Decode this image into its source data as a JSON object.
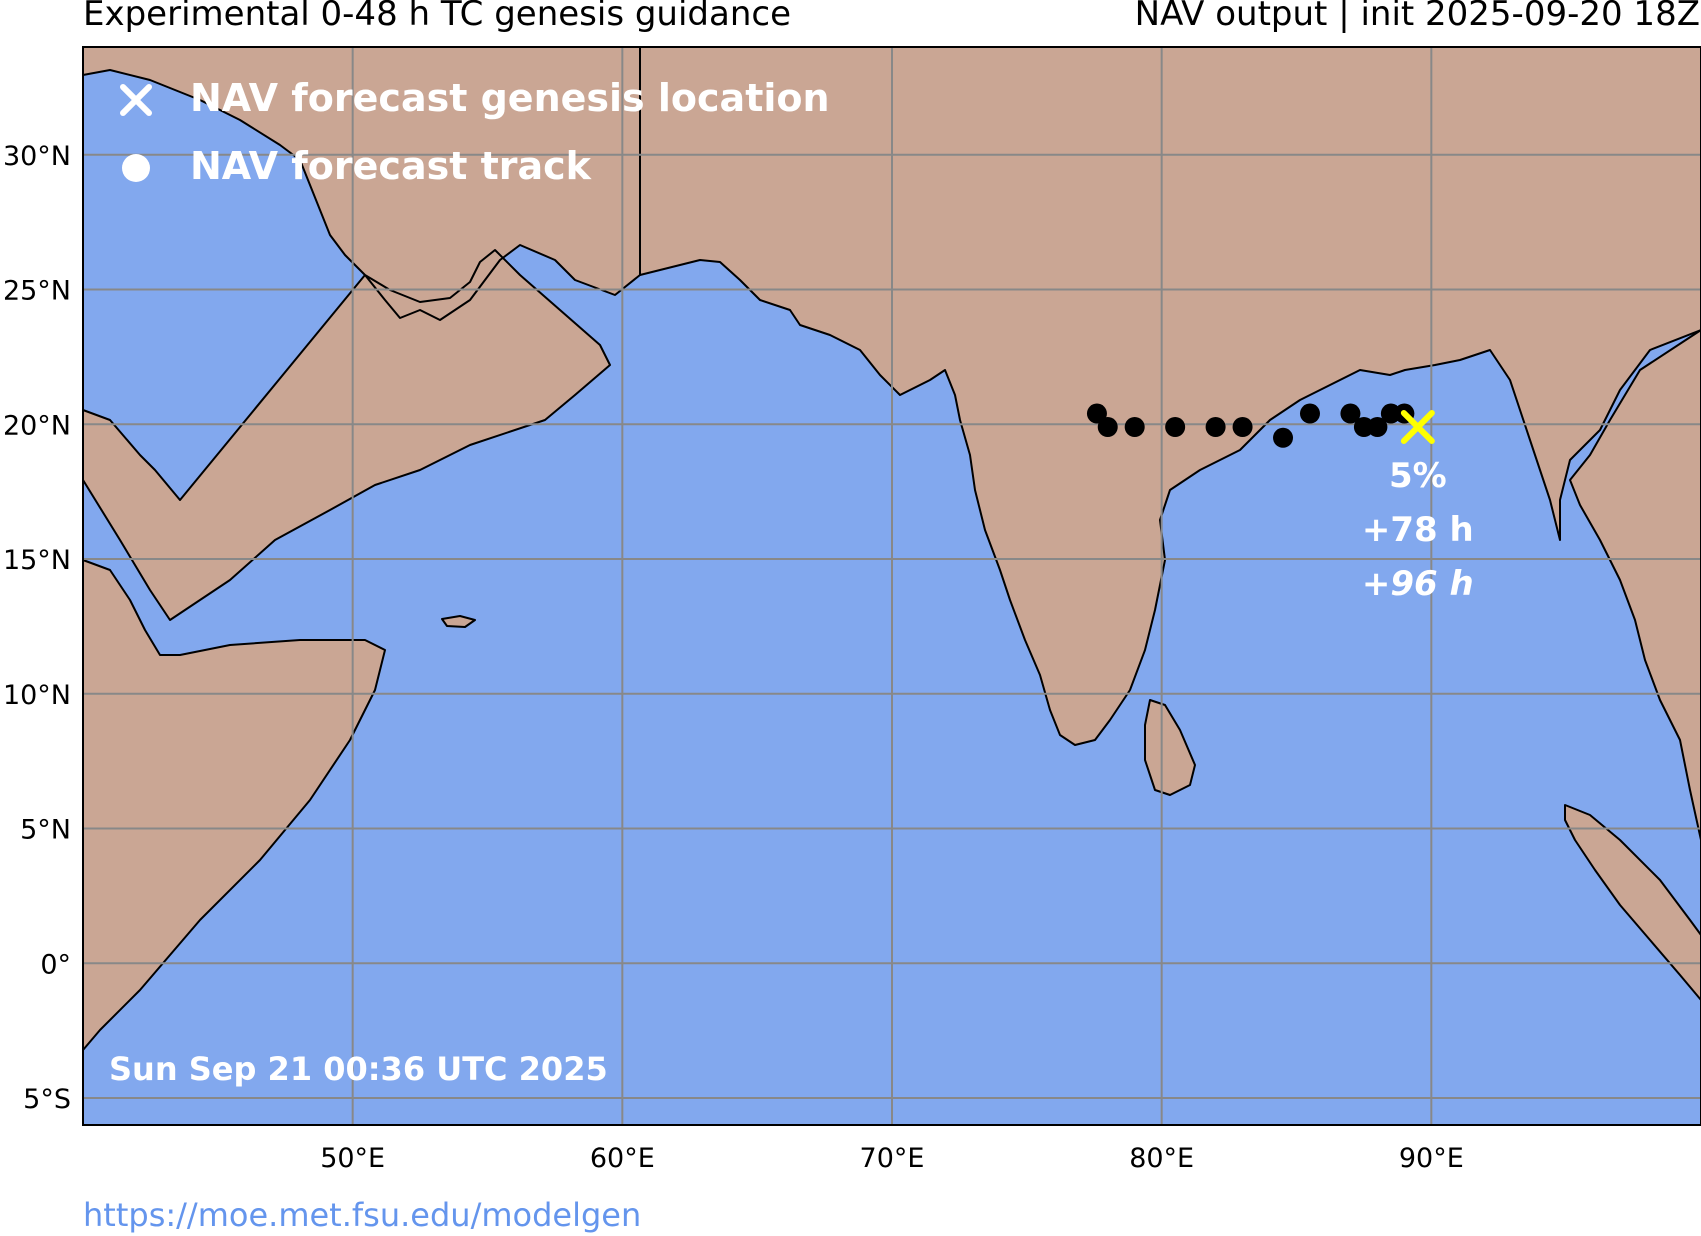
{
  "header": {
    "title_left": "Experimental 0-48 h TC genesis guidance",
    "title_right": "NAV output | init 2025-09-20 18Z"
  },
  "legend": {
    "genesis_label": "NAV forecast genesis location",
    "track_label": "NAV forecast track"
  },
  "map": {
    "extent": {
      "lon_min": 40,
      "lon_max": 100,
      "lat_min": -6,
      "lat_max": 34
    },
    "lat_ticks": [
      {
        "lat": 30,
        "label": "30°N"
      },
      {
        "lat": 25,
        "label": "25°N"
      },
      {
        "lat": 20,
        "label": "20°N"
      },
      {
        "lat": 15,
        "label": "15°N"
      },
      {
        "lat": 10,
        "label": "10°N"
      },
      {
        "lat": 5,
        "label": "5°N"
      },
      {
        "lat": 0,
        "label": "0°"
      },
      {
        "lat": -5,
        "label": "5°S"
      }
    ],
    "lon_ticks": [
      {
        "lon": 50,
        "label": "50°E"
      },
      {
        "lon": 60,
        "label": "60°E"
      },
      {
        "lon": 70,
        "label": "70°E"
      },
      {
        "lon": 80,
        "label": "80°E"
      },
      {
        "lon": 90,
        "label": "90°E"
      }
    ],
    "colors": {
      "ocean": "#82a8ee",
      "land": "#caa694",
      "grid": "#888888",
      "track": "#000000",
      "genesis_marker": "#ffff00",
      "label_text": "#ffffff"
    }
  },
  "forecast": {
    "track_points": [
      {
        "lon": 77.6,
        "lat": 20.4
      },
      {
        "lon": 78.0,
        "lat": 19.9
      },
      {
        "lon": 79.0,
        "lat": 19.9
      },
      {
        "lon": 80.5,
        "lat": 19.9
      },
      {
        "lon": 82.0,
        "lat": 19.9
      },
      {
        "lon": 83.0,
        "lat": 19.9
      },
      {
        "lon": 84.5,
        "lat": 19.5
      },
      {
        "lon": 85.5,
        "lat": 20.4
      },
      {
        "lon": 87.0,
        "lat": 20.4
      },
      {
        "lon": 87.5,
        "lat": 19.9
      },
      {
        "lon": 88.0,
        "lat": 19.9
      },
      {
        "lon": 88.5,
        "lat": 20.4
      },
      {
        "lon": 89.0,
        "lat": 20.4
      }
    ],
    "genesis": {
      "lon": 89.5,
      "lat": 19.9,
      "probability": "5%",
      "lead_time": "+78 h",
      "lead_time_alt": "+96 h"
    }
  },
  "timestamp": "Sun Sep 21 00:36 UTC 2025",
  "footer": {
    "link": "https://moe.met.fsu.edu/modelgen"
  }
}
